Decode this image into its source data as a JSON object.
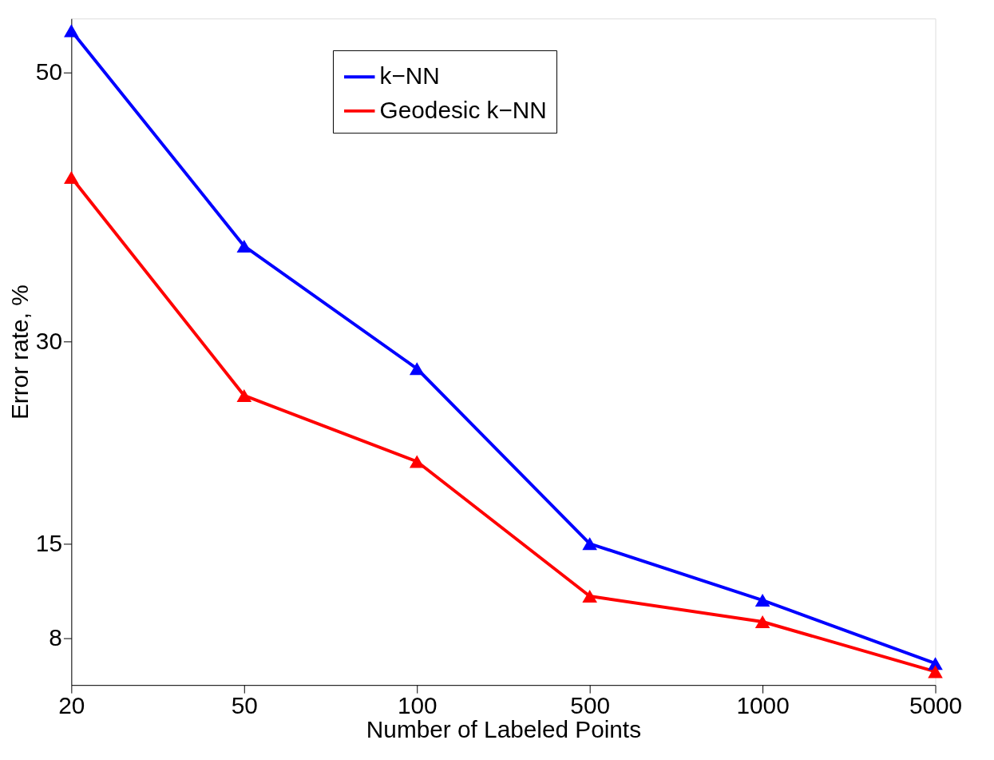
{
  "chart_data": {
    "type": "line",
    "xlabel": "Number of Labeled Points",
    "ylabel": "Error rate, %",
    "categories": [
      "20",
      "50",
      "100",
      "500",
      "1000",
      "5000"
    ],
    "series": [
      {
        "name": "k−NN",
        "color": "#0000ff",
        "values": [
          53.1,
          37.1,
          28.0,
          15.0,
          10.8,
          6.1
        ]
      },
      {
        "name": "Geodesic k−NN",
        "color": "#ff0000",
        "values": [
          42.2,
          26.0,
          21.1,
          11.1,
          9.2,
          5.5
        ]
      }
    ],
    "ylim": [
      4.5,
      54
    ],
    "yticks": [
      8,
      15,
      30,
      50
    ],
    "grid": false,
    "legend": "top",
    "marker": "triangle",
    "line_style": "solid"
  }
}
